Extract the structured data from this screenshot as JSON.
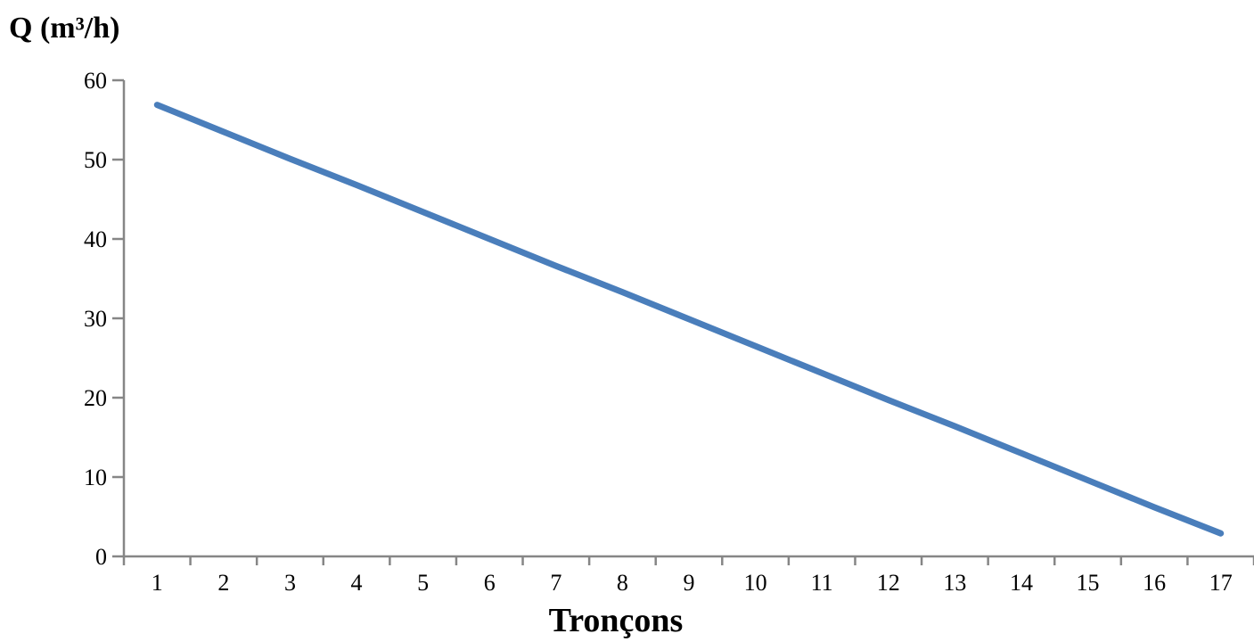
{
  "chart_data": {
    "type": "line",
    "title": "",
    "xlabel": "Tronçons",
    "ylabel": "Q (m³/h)",
    "categories": [
      "1",
      "2",
      "3",
      "4",
      "5",
      "6",
      "7",
      "8",
      "9",
      "10",
      "11",
      "12",
      "13",
      "14",
      "15",
      "16",
      "17"
    ],
    "ylim": [
      0,
      60
    ],
    "yticks": [
      0,
      10,
      20,
      30,
      40,
      50,
      60
    ],
    "grid": false,
    "legend": "none",
    "series": [
      {
        "color": "#4a7ebb",
        "values": [
          56.9,
          53.5,
          50.1,
          46.8,
          43.4,
          40.0,
          36.6,
          33.3,
          29.9,
          26.5,
          23.1,
          19.7,
          16.4,
          13.0,
          9.6,
          6.2,
          2.9
        ]
      }
    ]
  }
}
